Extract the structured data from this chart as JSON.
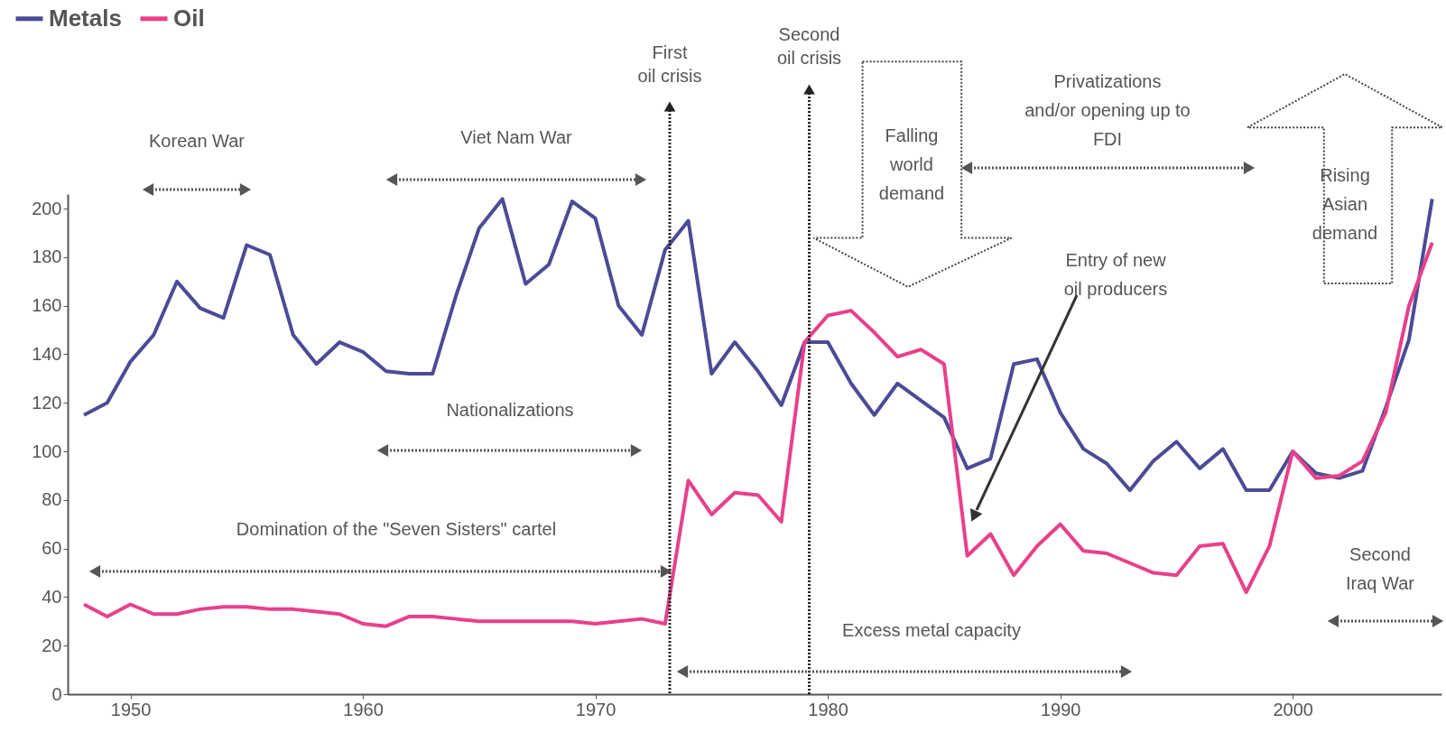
{
  "chart_data": {
    "type": "line",
    "x": [
      1948,
      1949,
      1950,
      1951,
      1952,
      1953,
      1954,
      1955,
      1956,
      1957,
      1958,
      1959,
      1960,
      1961,
      1962,
      1963,
      1964,
      1965,
      1966,
      1967,
      1968,
      1969,
      1970,
      1971,
      1972,
      1973,
      1974,
      1975,
      1976,
      1977,
      1978,
      1979,
      1980,
      1981,
      1982,
      1983,
      1984,
      1985,
      1986,
      1987,
      1988,
      1989,
      1990,
      1991,
      1992,
      1993,
      1994,
      1995,
      1996,
      1997,
      1998,
      1999,
      2000,
      2001,
      2002,
      2003,
      2004,
      2005,
      2006
    ],
    "series": [
      {
        "name": "Metals",
        "color": "#4b4b96",
        "values": [
          115,
          120,
          137,
          148,
          170,
          159,
          155,
          185,
          181,
          148,
          136,
          145,
          141,
          133,
          132,
          132,
          164,
          192,
          204,
          169,
          177,
          203,
          196,
          160,
          148,
          183,
          195,
          132,
          145,
          133,
          119,
          145,
          145,
          128,
          115,
          128,
          121,
          114,
          93,
          97,
          136,
          138,
          116,
          101,
          95,
          84,
          96,
          104,
          93,
          101,
          84,
          84,
          100,
          91,
          89,
          92,
          118,
          146,
          204
        ]
      },
      {
        "name": "Oil",
        "color": "#e8408a",
        "values": [
          37,
          32,
          37,
          33,
          33,
          35,
          36,
          36,
          35,
          35,
          34,
          33,
          29,
          28,
          32,
          32,
          31,
          30,
          30,
          30,
          30,
          30,
          29,
          30,
          31,
          29,
          88,
          74,
          83,
          82,
          71,
          145,
          156,
          158,
          149,
          139,
          142,
          136,
          57,
          66,
          49,
          61,
          70,
          59,
          58,
          54,
          50,
          49,
          61,
          62,
          42,
          61,
          100,
          89,
          90,
          96,
          116,
          160,
          186
        ]
      }
    ],
    "xlim": [
      1947.3,
      2006.4
    ],
    "xticks": [
      1950,
      1960,
      1970,
      1980,
      1990,
      2000
    ],
    "ylim": [
      0,
      206
    ],
    "yticks": [
      0,
      20,
      40,
      60,
      80,
      100,
      120,
      140,
      160,
      180,
      200
    ],
    "grid": false,
    "legend": "top left",
    "line_style": "solid",
    "marker": "none",
    "ref_lines": [
      {
        "axis": "x",
        "value": 1973.2,
        "label": "First\noil crisis",
        "line_style": "dotted"
      },
      {
        "axis": "x",
        "value": 1979.2,
        "label": "Second\noil crisis",
        "line_style": "dotted"
      }
    ],
    "annotations": [
      "Entry of new\noil producers",
      "Korean War",
      "Viet Nam War",
      "Nationalizations",
      "Domination of the \"Seven Sisters\" cartel",
      "Excess metal capacity",
      "Privatizations\nand/or opening up to\nFDI",
      "Second\nIraq War",
      "Falling\nworld\ndemand",
      "Rising\nAsian\ndemand"
    ]
  }
}
